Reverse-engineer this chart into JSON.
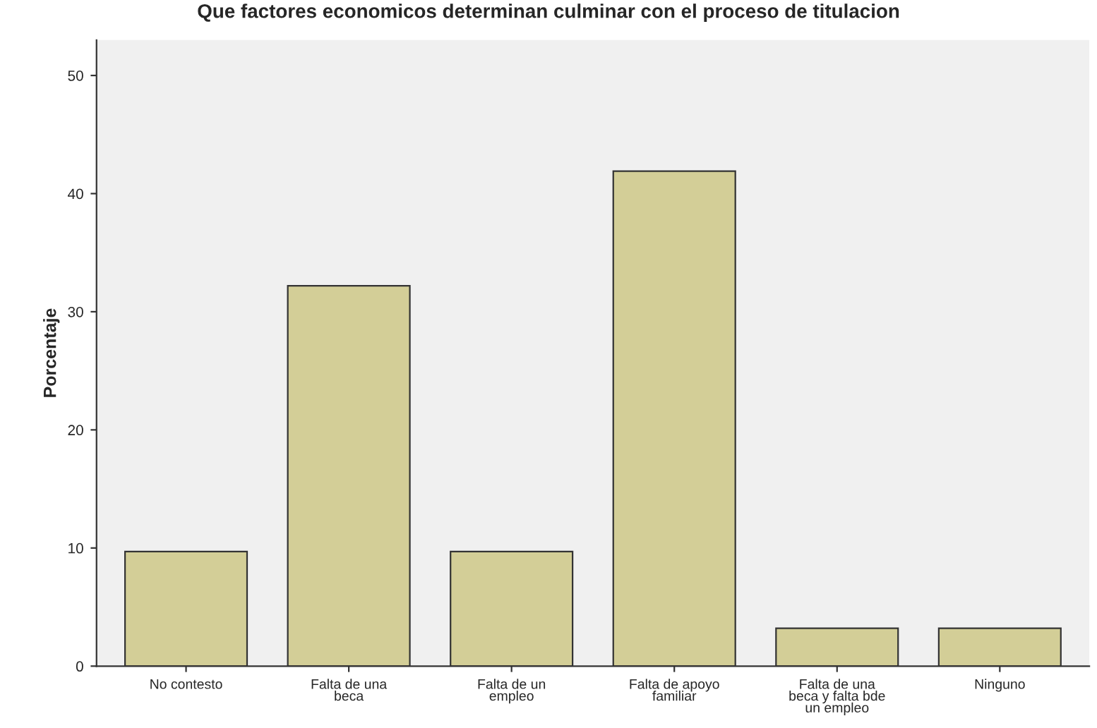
{
  "chart_data": {
    "type": "bar",
    "title": "Que factores economicos determinan culminar con el proceso de titulacion",
    "ylabel": "Porcentaje",
    "categories": [
      "No contesto",
      "Falta de una\nbeca",
      "Falta de un\nempleo",
      "Falta de apoyo\nfamiliar",
      "Falta de una\nbeca y falta bde\nun empleo",
      "Ninguno"
    ],
    "values": [
      9.7,
      32.2,
      9.7,
      41.9,
      3.2,
      3.2
    ],
    "color": "#d3ce97",
    "ylim": [
      0,
      53
    ],
    "yticks": [
      0,
      10,
      20,
      30,
      40,
      50
    ],
    "grid": false,
    "legend": false
  }
}
